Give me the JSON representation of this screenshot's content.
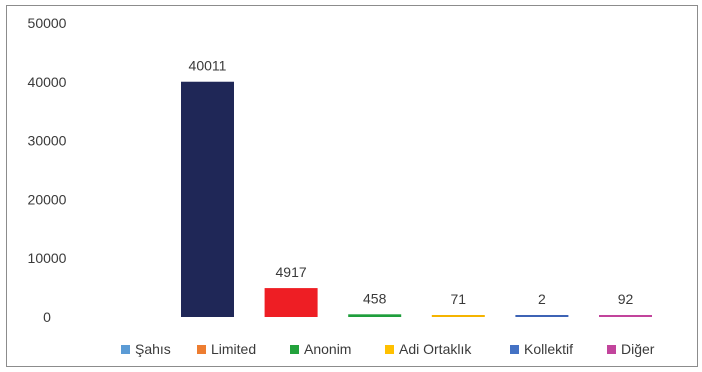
{
  "chart_data": {
    "type": "bar",
    "categories": [
      "Şahıs",
      "Limited",
      "Anonim",
      "Adi Ortaklık",
      "Kollektif",
      "Diğer"
    ],
    "values": [
      40011,
      4917,
      458,
      71,
      2,
      92
    ],
    "data_labels": [
      "40011",
      "4917",
      "458",
      "71",
      "2",
      "92"
    ],
    "bar_colors": [
      "#1f2757",
      "#ee1e24",
      "#1f9e3c",
      "#f5b400",
      "#3d63b5",
      "#c2449c"
    ],
    "legend_colors": [
      "#5b9bd5",
      "#ed7d31",
      "#23a23c",
      "#ffc000",
      "#4472c4",
      "#c2449c"
    ],
    "ylim": [
      0,
      50000
    ],
    "yticks": [
      "0",
      "10000",
      "20000",
      "30000",
      "40000",
      "50000"
    ],
    "ytick_values": [
      0,
      10000,
      20000,
      30000,
      40000,
      50000
    ],
    "grid": false,
    "legend_position": "bottom",
    "title": "",
    "xlabel": "",
    "ylabel": ""
  }
}
